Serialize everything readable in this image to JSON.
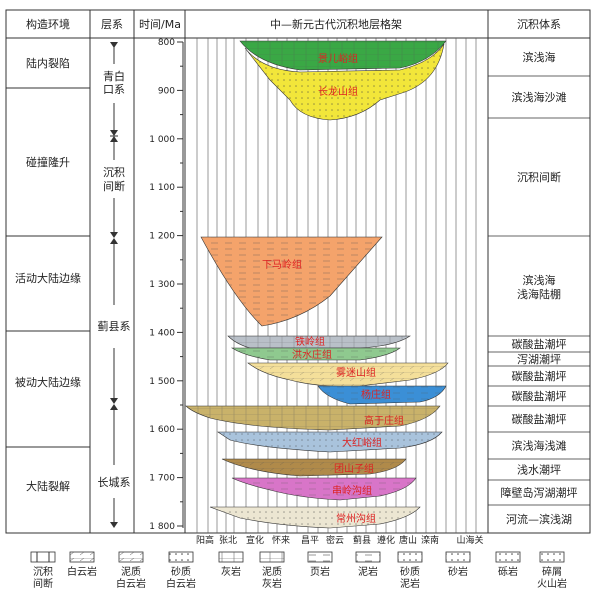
{
  "headers": {
    "tectonic": "构造环境",
    "system": "层系",
    "time": "时间/Ma",
    "framework": "中—新元古代沉积地层格架",
    "sediment": "沉积体系"
  },
  "tectonic_settings": [
    "陆内裂陷",
    "碰撞隆升",
    "活动大陆边缘",
    "被动大陆边缘",
    "大陆裂解"
  ],
  "systems": [
    "青白口系",
    "沉积间断",
    "蓟县系",
    "长城系"
  ],
  "time_ticks": [
    "800",
    "900",
    "1 000",
    "1 100",
    "1 200",
    "1 300",
    "1 400",
    "1 500",
    "1 600",
    "1 700",
    "1 800"
  ],
  "sediment_systems": [
    "滨浅海",
    "滨浅海沙滩",
    "沉积间断",
    "滨浅海 浅海陆棚",
    "碳酸盐潮坪",
    "泻湖潮坪",
    "碳酸盐潮坪",
    "碳酸盐潮坪",
    "碳酸盐潮坪",
    "滨浅海浅滩",
    "浅水潮坪",
    "障壁岛泻湖潮坪",
    "河流—滨浅湖"
  ],
  "formations": [
    "景儿峪组",
    "长龙山组",
    "下马岭组",
    "铁岭组",
    "洪水庄组",
    "雾迷山组",
    "杨庄组",
    "高于庄组",
    "大红峪组",
    "团山子组",
    "串岭沟组",
    "常州沟组"
  ],
  "locations": [
    "阳高",
    "张北",
    "宣化",
    "怀来",
    "昌平",
    "密云",
    "蓟县",
    "遵化",
    "唐山",
    "滦南",
    "山海关"
  ],
  "legend": [
    "沉积间断",
    "白云岩",
    "泥质白云岩",
    "砂质白云岩",
    "灰岩",
    "泥质灰岩",
    "页岩",
    "泥岩",
    "砂质泥岩",
    "砂岩",
    "砾岩",
    "碎屑火山岩"
  ],
  "colors": {
    "jingeryu": "#3aa845",
    "changlongshan": "#f2e63a",
    "xiamaling": "#f4a36b",
    "tieling": "#b9c0c8",
    "hongshuizhuang": "#8fc98f",
    "wumishan": "#f4df9a",
    "yangzhuang": "#3b8fd6",
    "gaoyuzhuang": "#c9b26a",
    "dahongyu": "#a9c3dc",
    "tuanshanzi": "#b08a4a",
    "chuanlinggou": "#d875c8",
    "changzhougou": "#ece6d2"
  }
}
